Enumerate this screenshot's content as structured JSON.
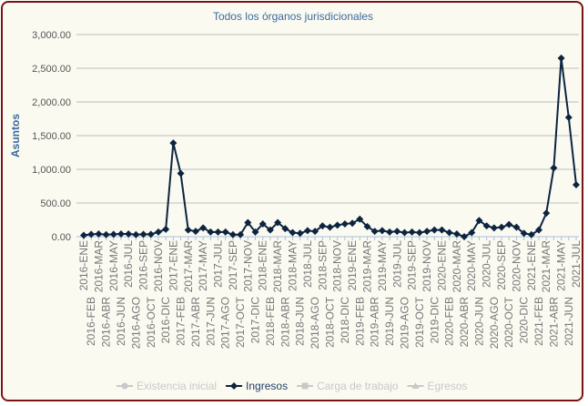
{
  "chart_data": {
    "type": "line",
    "title": "Todos los órganos jurisdicionales",
    "xlabel": "",
    "ylabel": "Asuntos",
    "ylim": [
      0,
      3000
    ],
    "yticks": [
      "0.00",
      "500.00",
      "1,000.00",
      "1,500.00",
      "2,000.00",
      "2,500.00",
      "3,000.00"
    ],
    "ytick_values": [
      0,
      500,
      1000,
      1500,
      2000,
      2500,
      3000
    ],
    "grid": true,
    "legend_position": "bottom",
    "legend": [
      {
        "name": "Existencia inicial",
        "active": false
      },
      {
        "name": "Ingresos",
        "active": true
      },
      {
        "name": "Carga de trabajo",
        "active": false
      },
      {
        "name": "Egresos",
        "active": false
      }
    ],
    "colors": {
      "series": "#0d2440",
      "inactive": "#c8c8c8",
      "title": "#3a6aa0",
      "axis_text": "#555555",
      "grid": "#bdbdbd"
    },
    "months": [
      "ENE",
      "FEB",
      "MAR",
      "ABR",
      "MAY",
      "JUN",
      "JUL",
      "AGO",
      "SEP",
      "OCT",
      "NOV",
      "DIC"
    ],
    "start_year": 2016,
    "series": [
      {
        "name": "Ingresos",
        "values": [
          20,
          35,
          40,
          30,
          35,
          40,
          40,
          30,
          35,
          35,
          70,
          110,
          1390,
          940,
          100,
          80,
          130,
          70,
          70,
          70,
          30,
          30,
          210,
          70,
          190,
          100,
          210,
          120,
          60,
          50,
          90,
          80,
          160,
          140,
          170,
          190,
          200,
          260,
          150,
          80,
          90,
          70,
          80,
          60,
          70,
          60,
          80,
          100,
          100,
          60,
          40,
          0,
          60,
          240,
          160,
          130,
          140,
          180,
          140,
          50,
          30,
          100,
          350,
          1020,
          2650,
          1770,
          770
        ]
      }
    ]
  }
}
